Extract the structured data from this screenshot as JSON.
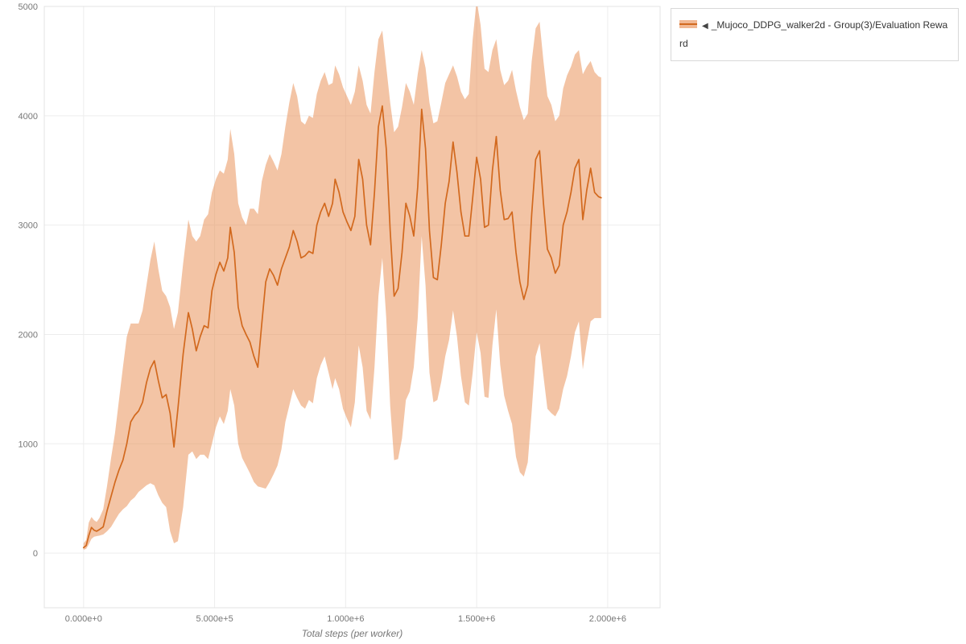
{
  "legend": {
    "collapse_icon": "◀",
    "series_label": "_Mujoco_DDPG_walker2d - Group(3)/Evaluation Reward"
  },
  "chart_data": {
    "type": "line",
    "title": "",
    "xlabel": "Total steps (per worker)",
    "ylabel": "",
    "xlim": [
      -150000,
      2200000
    ],
    "ylim": [
      -500,
      5000
    ],
    "grid": true,
    "legend_position": "top-right-outside",
    "x_scale": 1000,
    "x_ticks": {
      "values": [
        0,
        500000,
        1000000,
        1500000,
        2000000
      ],
      "labels": [
        "0.000e+0",
        "5.000e+5",
        "1.000e+6",
        "1.500e+6",
        "2.000e+6"
      ]
    },
    "y_ticks": {
      "values": [
        0,
        1000,
        2000,
        3000,
        4000,
        5000
      ],
      "labels": [
        "0",
        "1000",
        "2000",
        "3000",
        "4000",
        "5000"
      ]
    },
    "colors": {
      "line": "#d2691e",
      "band": "#e7894b",
      "band_opacity": 0.5,
      "grid": "#ededed",
      "frame": "#e3e3e3",
      "tick_text": "#777777"
    },
    "series": [
      {
        "name": "_Mujoco_DDPG_walker2d - Group(3)/Evaluation Reward",
        "has_band": true,
        "point_format": [
          "x_thousands",
          "mean",
          "lower",
          "upper"
        ],
        "points": [
          [
            0,
            50,
            30,
            90
          ],
          [
            10,
            70,
            40,
            120
          ],
          [
            20,
            160,
            80,
            280
          ],
          [
            30,
            235,
            130,
            330
          ],
          [
            40,
            210,
            150,
            300
          ],
          [
            50,
            200,
            155,
            285
          ],
          [
            60,
            215,
            160,
            320
          ],
          [
            75,
            240,
            170,
            400
          ],
          [
            90,
            390,
            200,
            620
          ],
          [
            105,
            520,
            240,
            870
          ],
          [
            120,
            650,
            300,
            1100
          ],
          [
            135,
            760,
            360,
            1400
          ],
          [
            150,
            850,
            400,
            1700
          ],
          [
            165,
            1000,
            430,
            1980
          ],
          [
            180,
            1200,
            480,
            2100
          ],
          [
            195,
            1260,
            510,
            2100
          ],
          [
            210,
            1300,
            560,
            2100
          ],
          [
            225,
            1380,
            590,
            2220
          ],
          [
            240,
            1560,
            620,
            2450
          ],
          [
            255,
            1690,
            640,
            2680
          ],
          [
            270,
            1760,
            620,
            2850
          ],
          [
            285,
            1580,
            530,
            2600
          ],
          [
            300,
            1420,
            460,
            2400
          ],
          [
            315,
            1450,
            420,
            2350
          ],
          [
            330,
            1280,
            200,
            2250
          ],
          [
            345,
            970,
            90,
            2050
          ],
          [
            360,
            1320,
            110,
            2200
          ],
          [
            380,
            1820,
            420,
            2650
          ],
          [
            400,
            2200,
            900,
            3050
          ],
          [
            415,
            2050,
            930,
            2900
          ],
          [
            430,
            1850,
            860,
            2850
          ],
          [
            445,
            1980,
            900,
            2900
          ],
          [
            460,
            2080,
            900,
            3050
          ],
          [
            475,
            2060,
            860,
            3100
          ],
          [
            490,
            2400,
            1000,
            3300
          ],
          [
            505,
            2550,
            1150,
            3420
          ],
          [
            520,
            2660,
            1250,
            3500
          ],
          [
            535,
            2580,
            1180,
            3470
          ],
          [
            550,
            2700,
            1300,
            3600
          ],
          [
            560,
            2980,
            1500,
            3880
          ],
          [
            575,
            2750,
            1350,
            3650
          ],
          [
            590,
            2250,
            1000,
            3200
          ],
          [
            605,
            2080,
            870,
            3070
          ],
          [
            620,
            2000,
            800,
            3000
          ],
          [
            635,
            1930,
            730,
            3150
          ],
          [
            650,
            1800,
            650,
            3150
          ],
          [
            665,
            1700,
            610,
            3100
          ],
          [
            680,
            2100,
            600,
            3400
          ],
          [
            695,
            2480,
            590,
            3550
          ],
          [
            710,
            2600,
            650,
            3650
          ],
          [
            725,
            2540,
            720,
            3580
          ],
          [
            740,
            2450,
            800,
            3500
          ],
          [
            755,
            2600,
            950,
            3650
          ],
          [
            770,
            2700,
            1200,
            3900
          ],
          [
            785,
            2800,
            1350,
            4120
          ],
          [
            800,
            2950,
            1500,
            4300
          ],
          [
            815,
            2850,
            1420,
            4180
          ],
          [
            830,
            2700,
            1350,
            3950
          ],
          [
            845,
            2720,
            1320,
            3920
          ],
          [
            860,
            2760,
            1400,
            4000
          ],
          [
            875,
            2740,
            1370,
            3980
          ],
          [
            890,
            3000,
            1600,
            4200
          ],
          [
            905,
            3120,
            1720,
            4320
          ],
          [
            920,
            3200,
            1800,
            4400
          ],
          [
            935,
            3080,
            1650,
            4280
          ],
          [
            950,
            3200,
            1500,
            4300
          ],
          [
            960,
            3420,
            1600,
            4460
          ],
          [
            975,
            3300,
            1500,
            4380
          ],
          [
            990,
            3120,
            1320,
            4260
          ],
          [
            1005,
            3030,
            1230,
            4180
          ],
          [
            1020,
            2950,
            1150,
            4100
          ],
          [
            1035,
            3080,
            1380,
            4220
          ],
          [
            1050,
            3600,
            1900,
            4460
          ],
          [
            1065,
            3420,
            1700,
            4320
          ],
          [
            1080,
            3000,
            1300,
            4100
          ],
          [
            1095,
            2820,
            1220,
            4020
          ],
          [
            1110,
            3300,
            1700,
            4400
          ],
          [
            1125,
            3900,
            2350,
            4700
          ],
          [
            1140,
            4090,
            2700,
            4780
          ],
          [
            1155,
            3700,
            2150,
            4450
          ],
          [
            1170,
            2950,
            1350,
            4120
          ],
          [
            1185,
            2350,
            850,
            3850
          ],
          [
            1200,
            2420,
            860,
            3900
          ],
          [
            1215,
            2750,
            1050,
            4080
          ],
          [
            1230,
            3200,
            1400,
            4300
          ],
          [
            1245,
            3080,
            1480,
            4220
          ],
          [
            1260,
            2900,
            1700,
            4100
          ],
          [
            1275,
            3350,
            2150,
            4380
          ],
          [
            1290,
            4060,
            2900,
            4600
          ],
          [
            1305,
            3700,
            2450,
            4440
          ],
          [
            1320,
            2950,
            1650,
            4120
          ],
          [
            1335,
            2520,
            1380,
            3930
          ],
          [
            1350,
            2500,
            1400,
            3950
          ],
          [
            1365,
            2820,
            1570,
            4120
          ],
          [
            1380,
            3200,
            1800,
            4300
          ],
          [
            1395,
            3400,
            1950,
            4380
          ],
          [
            1410,
            3760,
            2220,
            4460
          ],
          [
            1425,
            3480,
            1980,
            4360
          ],
          [
            1440,
            3120,
            1620,
            4220
          ],
          [
            1455,
            2900,
            1380,
            4150
          ],
          [
            1470,
            2900,
            1350,
            4200
          ],
          [
            1485,
            3250,
            1650,
            4700
          ],
          [
            1500,
            3620,
            2020,
            5060
          ],
          [
            1515,
            3420,
            1830,
            4830
          ],
          [
            1530,
            2980,
            1430,
            4430
          ],
          [
            1545,
            3000,
            1420,
            4400
          ],
          [
            1560,
            3500,
            1900,
            4600
          ],
          [
            1575,
            3810,
            2230,
            4700
          ],
          [
            1590,
            3320,
            1720,
            4420
          ],
          [
            1605,
            3050,
            1440,
            4280
          ],
          [
            1620,
            3060,
            1300,
            4320
          ],
          [
            1635,
            3120,
            1180,
            4420
          ],
          [
            1650,
            2750,
            880,
            4230
          ],
          [
            1665,
            2480,
            740,
            4080
          ],
          [
            1680,
            2320,
            700,
            3960
          ],
          [
            1695,
            2450,
            830,
            4020
          ],
          [
            1710,
            3100,
            1300,
            4500
          ],
          [
            1725,
            3600,
            1800,
            4800
          ],
          [
            1740,
            3680,
            1920,
            4860
          ],
          [
            1755,
            3200,
            1620,
            4500
          ],
          [
            1770,
            2780,
            1320,
            4180
          ],
          [
            1785,
            2700,
            1280,
            4100
          ],
          [
            1800,
            2560,
            1250,
            3950
          ],
          [
            1815,
            2630,
            1320,
            4000
          ],
          [
            1830,
            3000,
            1500,
            4250
          ],
          [
            1845,
            3120,
            1620,
            4370
          ],
          [
            1860,
            3300,
            1800,
            4450
          ],
          [
            1875,
            3520,
            2020,
            4560
          ],
          [
            1890,
            3600,
            2120,
            4600
          ],
          [
            1905,
            3050,
            1680,
            4380
          ],
          [
            1920,
            3320,
            1920,
            4450
          ],
          [
            1935,
            3520,
            2120,
            4500
          ],
          [
            1950,
            3300,
            2150,
            4400
          ],
          [
            1965,
            3260,
            2150,
            4360
          ],
          [
            1975,
            3250,
            2150,
            4350
          ]
        ]
      }
    ]
  }
}
